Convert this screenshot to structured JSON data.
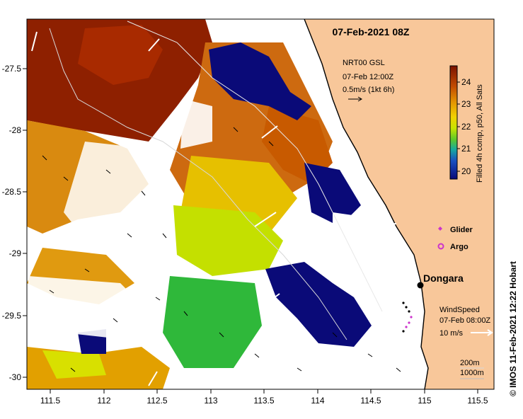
{
  "title": "07-Feb-2021 08Z",
  "axes": {
    "x_ticks": [
      "111.5",
      "112",
      "112.5",
      "113",
      "113.5",
      "114",
      "114.5",
      "115",
      "115.5"
    ],
    "y_ticks": [
      "-27.5",
      "-28",
      "-28.5",
      "-29",
      "-29.5",
      "-30"
    ]
  },
  "current_legend": {
    "line1": "NRT00 GSL",
    "line2": "07-Feb 12:00Z",
    "line3": "0.5m/s (1kt 6h)"
  },
  "colorbar": {
    "label": "Filled 4h comp, p50, All Sats",
    "ticks": [
      "24",
      "23",
      "22",
      "21",
      "20"
    ],
    "colors": [
      "#8a1a00",
      "#c14a00",
      "#e08a00",
      "#f2c200",
      "#d8e800",
      "#7fd400",
      "#21b34a",
      "#17a9c8",
      "#1a3fbf",
      "#0a0a78"
    ]
  },
  "markers": {
    "glider_label": "Glider",
    "argo_label": "Argo",
    "glider_color": "#cc33cc",
    "argo_color": "#cc33cc"
  },
  "place": {
    "name": "Dongara"
  },
  "wind_legend": {
    "line1": "WindSpeed",
    "line2": "07-Feb 08:00Z",
    "line3": "10 m/s"
  },
  "bathymetry_legend": {
    "line1": "200m",
    "line2": "1000m"
  },
  "credit": "© IMOS 11-Feb-2021 12:22 Hobart",
  "colors": {
    "land": "#f8c79a",
    "cloud": "#ffffff",
    "warm_dark": "#8a1a00",
    "warm": "#c95a00",
    "mid": "#e39a00",
    "cool_green": "#7fd400",
    "green": "#2eb83a",
    "cold": "#0a0a78"
  }
}
